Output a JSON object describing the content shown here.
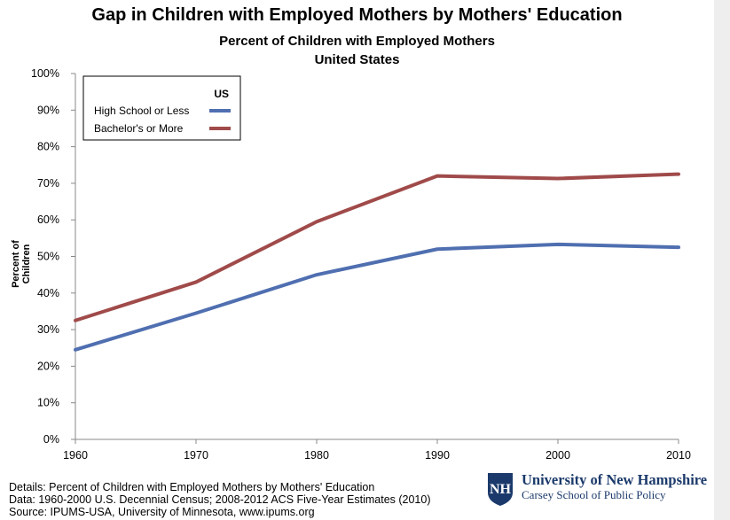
{
  "chart_data": {
    "type": "line",
    "title": "Gap in Children with Employed Mothers by Mothers' Education",
    "subtitle1": "Percent of Children with Employed Mothers",
    "subtitle2": "United States",
    "ylabel": "Percent of Children",
    "xlabel": "",
    "x": [
      1960,
      1970,
      1980,
      1990,
      2000,
      2010
    ],
    "x_tick_labels": [
      "1960",
      "1970",
      "1980",
      "1990",
      "2000",
      "2010"
    ],
    "y_tick_labels": [
      "0%",
      "10%",
      "20%",
      "30%",
      "40%",
      "50%",
      "60%",
      "70%",
      "80%",
      "90%",
      "100%"
    ],
    "ylim": [
      0,
      100
    ],
    "grid": false,
    "legend_title": "US",
    "legend_position": "top-left",
    "series": [
      {
        "name": "High School or Less",
        "color": "#4f6fb0",
        "values": [
          24.5,
          34.5,
          45,
          52,
          53.3,
          52.5
        ]
      },
      {
        "name": "Bachelor's or More",
        "color": "#a04a4a",
        "values": [
          32.5,
          43,
          59.5,
          72,
          71.3,
          72.5
        ]
      }
    ]
  },
  "footer": {
    "details_line1": "Details: Percent of Children with Employed Mothers by Mothers' Education",
    "details_line2": "Data: 1960-2000 U.S. Decennial Census; 2008-2012 ACS Five-Year Estimates (2010)",
    "details_line3": "Source: IPUMS-USA,  University  of Minnesota, www.ipums.org"
  },
  "logo": {
    "university": "University of New Hampshire",
    "school": "Carsey School of Public Policy",
    "mark_letters": "NH",
    "color": "#1b3a6b"
  }
}
